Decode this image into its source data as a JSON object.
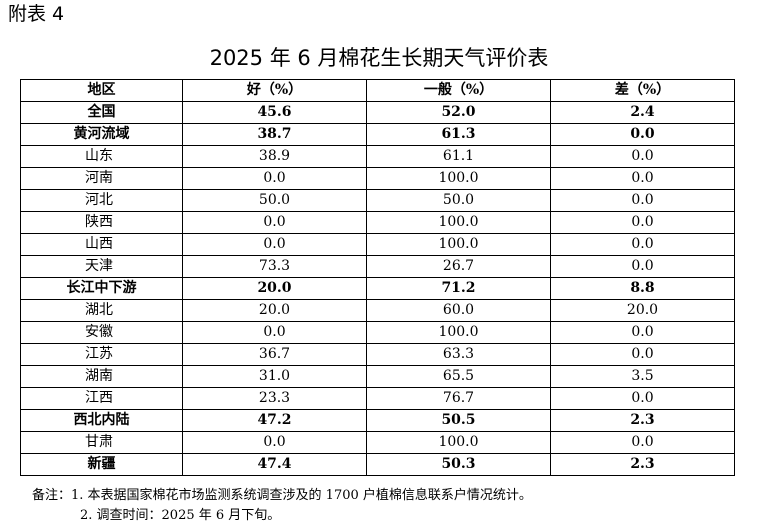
{
  "appendix_label": "附表 4",
  "title": "2025 年 6 月棉花生长期天气评价表",
  "table": {
    "headers": [
      "地区",
      "好（%）",
      "一般（%）",
      "差（%）"
    ],
    "rows": [
      {
        "name": "全国",
        "good": "45.6",
        "normal": "52.0",
        "poor": "2.4",
        "level": "total"
      },
      {
        "name": "黄河流域",
        "good": "38.7",
        "normal": "61.3",
        "poor": "0.0",
        "level": "region"
      },
      {
        "name": "山东",
        "good": "38.9",
        "normal": "61.1",
        "poor": "0.0",
        "level": "province"
      },
      {
        "name": "河南",
        "good": "0.0",
        "normal": "100.0",
        "poor": "0.0",
        "level": "province"
      },
      {
        "name": "河北",
        "good": "50.0",
        "normal": "50.0",
        "poor": "0.0",
        "level": "province"
      },
      {
        "name": "陕西",
        "good": "0.0",
        "normal": "100.0",
        "poor": "0.0",
        "level": "province"
      },
      {
        "name": "山西",
        "good": "0.0",
        "normal": "100.0",
        "poor": "0.0",
        "level": "province"
      },
      {
        "name": "天津",
        "good": "73.3",
        "normal": "26.7",
        "poor": "0.0",
        "level": "province"
      },
      {
        "name": "长江中下游",
        "good": "20.0",
        "normal": "71.2",
        "poor": "8.8",
        "level": "region"
      },
      {
        "name": "湖北",
        "good": "20.0",
        "normal": "60.0",
        "poor": "20.0",
        "level": "province"
      },
      {
        "name": "安徽",
        "good": "0.0",
        "normal": "100.0",
        "poor": "0.0",
        "level": "province"
      },
      {
        "name": "江苏",
        "good": "36.7",
        "normal": "63.3",
        "poor": "0.0",
        "level": "province"
      },
      {
        "name": "湖南",
        "good": "31.0",
        "normal": "65.5",
        "poor": "3.5",
        "level": "province"
      },
      {
        "name": "江西",
        "good": "23.3",
        "normal": "76.7",
        "poor": "0.0",
        "level": "province"
      },
      {
        "name": "西北内陆",
        "good": "47.2",
        "normal": "50.5",
        "poor": "2.3",
        "level": "region"
      },
      {
        "name": "甘肃",
        "good": "0.0",
        "normal": "100.0",
        "poor": "0.0",
        "level": "province"
      },
      {
        "name": "新疆",
        "good": "47.4",
        "normal": "50.3",
        "poor": "2.3",
        "level": "region"
      }
    ]
  },
  "notes": [
    "备注：1. 本表据国家棉花市场监测系统调查涉及的 1700 户植棉信息联系户情况统计。",
    "2. 调查时间：2025 年 6 月下旬。"
  ]
}
